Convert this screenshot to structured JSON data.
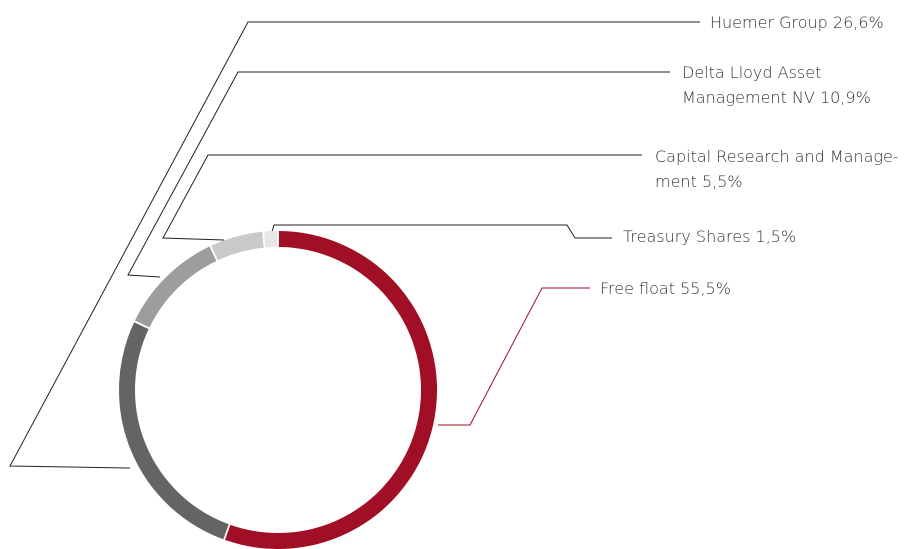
{
  "chart_data": {
    "type": "donut",
    "categories": [
      "Free float",
      "Huemer Group",
      "Delta Lloyd Asset\nManagement NV",
      "Capital Research and Manage-\nment",
      "Treasury Shares"
    ],
    "values": [
      55.5,
      26.6,
      10.9,
      5.5,
      1.5
    ],
    "value_labels": [
      "55,5%",
      "26,6%",
      "10,9%",
      "5,5%",
      "1,5%"
    ],
    "colors": [
      "#a00f26",
      "#646464",
      "#9d9d9d",
      "#c9c9c9",
      "#e6e6e6"
    ]
  }
}
